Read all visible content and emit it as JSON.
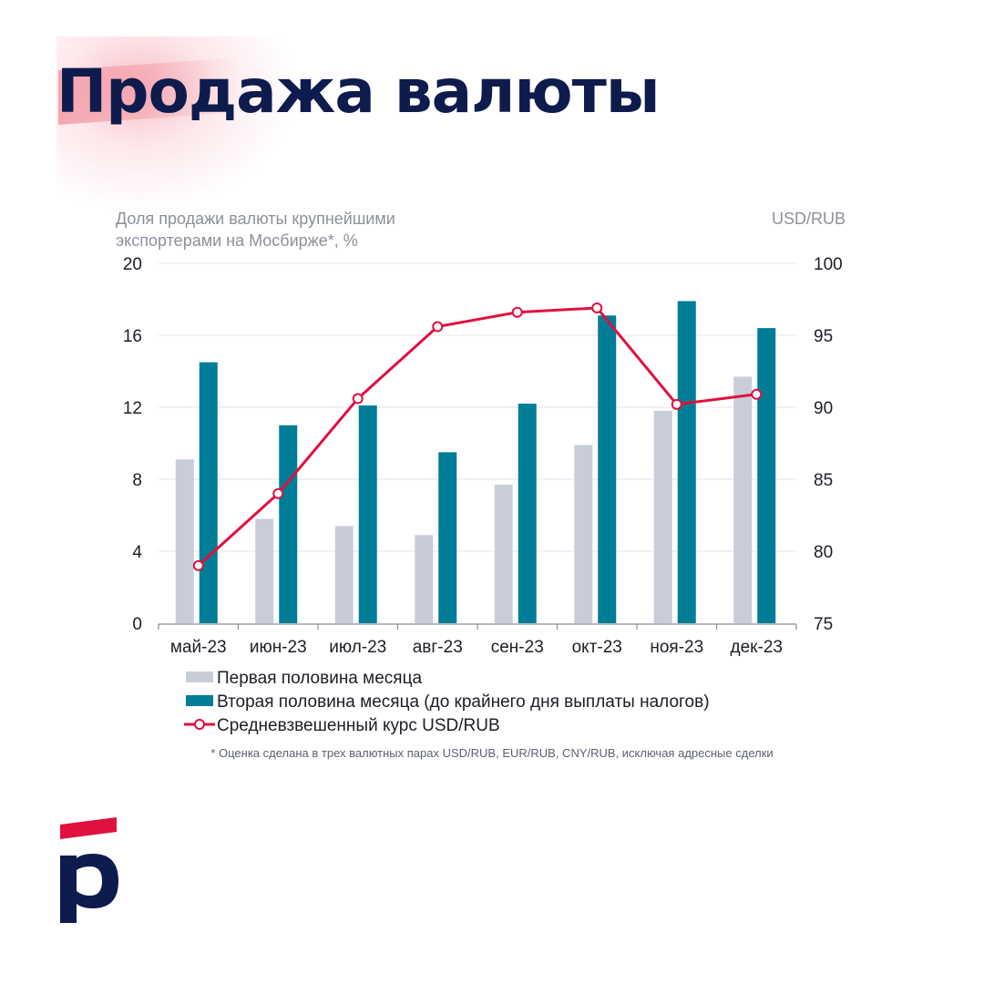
{
  "page": {
    "title": "Продажа валюты"
  },
  "footnote": "* Оценка сделана в трех валютных парах USD/RUB, EUR/RUB, CNY/RUB, исключая адресные сделки",
  "colors": {
    "first_half": "#c9cdda",
    "second_half": "#007d96",
    "rate": "#e0103f",
    "title": "#0e1b4d"
  },
  "chart_data": {
    "type": "bar",
    "title": "",
    "left_axis_label_lines": [
      "Доля продажи валюты крупнейшими",
      "экспортерами на Мосбирже*, %"
    ],
    "right_axis_label": "USD/RUB",
    "categories": [
      "май-23",
      "июн-23",
      "июл-23",
      "авг-23",
      "сен-23",
      "окт-23",
      "ноя-23",
      "дек-23"
    ],
    "ylim": [
      0,
      20
    ],
    "yticks": [
      "0",
      "4",
      "8",
      "12",
      "16",
      "20"
    ],
    "y2lim": [
      75,
      100
    ],
    "y2ticks": [
      "75",
      "80",
      "85",
      "90",
      "95",
      "100"
    ],
    "grid": true,
    "legend_position": "bottom-left",
    "series": [
      {
        "name": "Первая половина месяца",
        "type": "bar",
        "axis": "left",
        "color": "#c9cdda",
        "values": [
          9.1,
          5.8,
          5.4,
          4.9,
          7.7,
          9.9,
          11.8,
          13.7
        ]
      },
      {
        "name": "Вторая половина месяца (до крайнего дня выплаты налогов)",
        "type": "bar",
        "axis": "left",
        "color": "#007d96",
        "values": [
          14.5,
          11.0,
          12.1,
          9.5,
          12.2,
          17.1,
          17.9,
          16.4
        ]
      },
      {
        "name": "Средневзвешенный курс USD/RUB",
        "type": "line",
        "axis": "right",
        "color": "#e0103f",
        "values": [
          79.0,
          84.0,
          90.6,
          95.6,
          96.6,
          96.9,
          90.2,
          90.9
        ]
      }
    ]
  }
}
